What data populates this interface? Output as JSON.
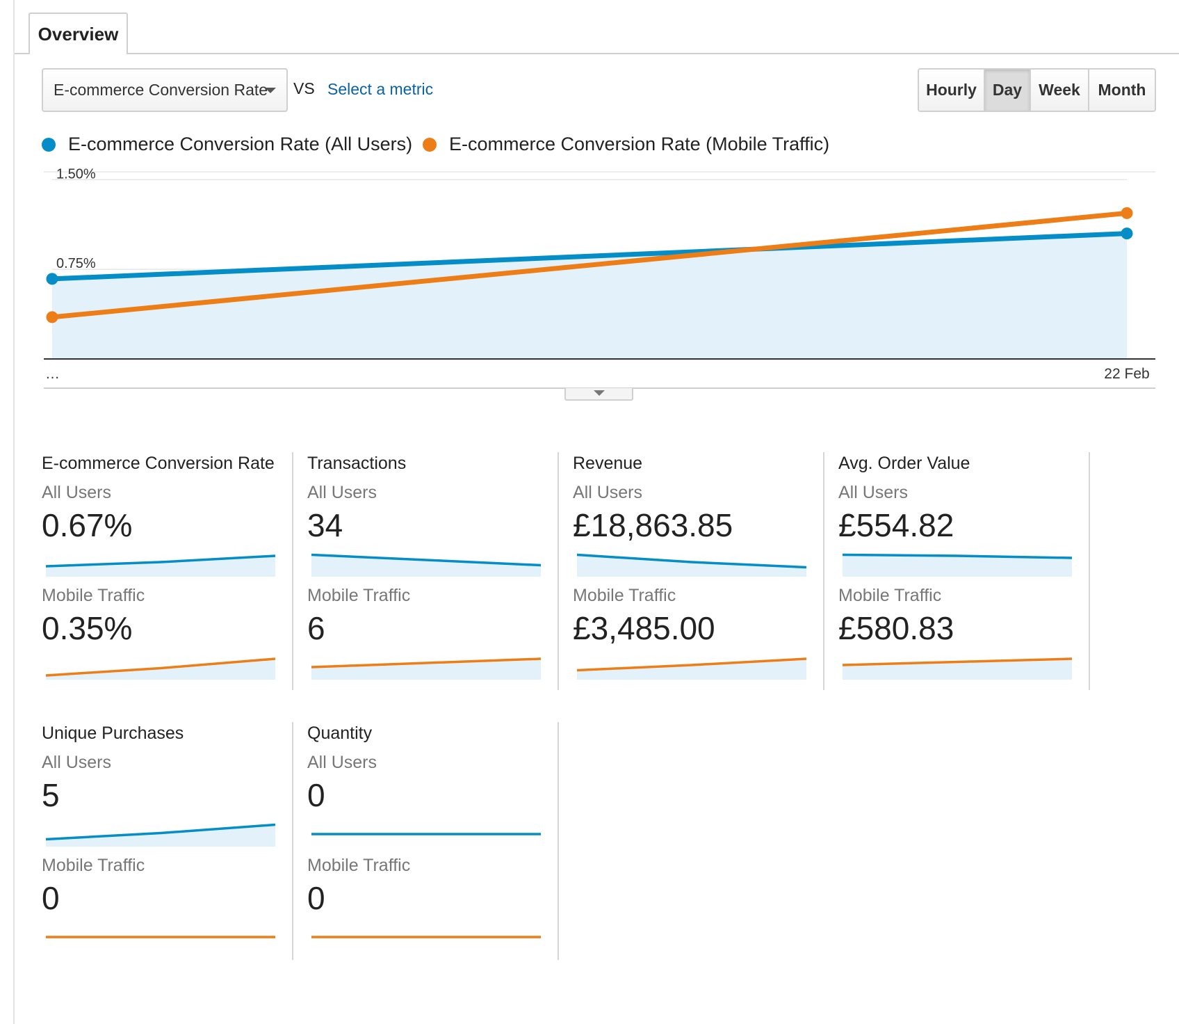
{
  "tabs": [
    {
      "label": "Overview",
      "active": true
    }
  ],
  "toolbar": {
    "metric_selected": "E-commerce Conversion Rate",
    "vs_label": "VS",
    "compare_link": "Select a metric",
    "periods": [
      {
        "label": "Hourly",
        "active": false
      },
      {
        "label": "Day",
        "active": true
      },
      {
        "label": "Week",
        "active": false
      },
      {
        "label": "Month",
        "active": false
      }
    ]
  },
  "legend": [
    {
      "label": "E-commerce Conversion Rate (All Users)",
      "color": "#058dc7"
    },
    {
      "label": "E-commerce Conversion Rate (Mobile Traffic)",
      "color": "#ed7e17"
    }
  ],
  "chart_data": {
    "type": "line",
    "x": [
      "…",
      "22 Feb"
    ],
    "series": [
      {
        "name": "E-commerce Conversion Rate (All Users)",
        "values": [
          0.67,
          1.05
        ],
        "color": "#058dc7",
        "area": true
      },
      {
        "name": "E-commerce Conversion Rate (Mobile Traffic)",
        "values": [
          0.35,
          1.22
        ],
        "color": "#ed7e17",
        "area": false
      }
    ],
    "y_ticks": [
      "1.50%",
      "0.75%"
    ],
    "y_tick_values": [
      1.5,
      0.75
    ],
    "ylim": [
      0,
      1.56
    ],
    "grid": true,
    "title": "",
    "xlabel": "",
    "ylabel": ""
  },
  "scorecards": [
    {
      "title": "E-commerce Conversion Rate",
      "all_users": {
        "label": "All Users",
        "value": "0.67%",
        "trend": [
          0.4,
          0.6,
          0.9
        ]
      },
      "mobile": {
        "label": "Mobile Traffic",
        "value": "0.35%",
        "trend": [
          0.1,
          0.45,
          0.9
        ]
      }
    },
    {
      "title": "Transactions",
      "all_users": {
        "label": "All Users",
        "value": "34",
        "trend": [
          0.95,
          0.7,
          0.45
        ]
      },
      "mobile": {
        "label": "Mobile Traffic",
        "value": "6",
        "trend": [
          0.5,
          0.7,
          0.9
        ]
      }
    },
    {
      "title": "Revenue",
      "all_users": {
        "label": "All Users",
        "value": "£18,863.85",
        "trend": [
          0.95,
          0.6,
          0.35
        ]
      },
      "mobile": {
        "label": "Mobile Traffic",
        "value": "£3,485.00",
        "trend": [
          0.35,
          0.6,
          0.9
        ]
      }
    },
    {
      "title": "Avg. Order Value",
      "all_users": {
        "label": "All Users",
        "value": "£554.82",
        "trend": [
          0.95,
          0.9,
          0.8
        ]
      },
      "mobile": {
        "label": "Mobile Traffic",
        "value": "£580.83",
        "trend": [
          0.6,
          0.75,
          0.9
        ]
      }
    },
    {
      "title": "Unique Purchases",
      "all_users": {
        "label": "All Users",
        "value": "5",
        "trend": [
          0.25,
          0.55,
          0.95
        ]
      },
      "mobile": {
        "label": "Mobile Traffic",
        "value": "0",
        "trend": [
          0,
          0,
          0
        ]
      }
    },
    {
      "title": "Quantity",
      "all_users": {
        "label": "All Users",
        "value": "0",
        "trend": [
          0,
          0,
          0
        ]
      },
      "mobile": {
        "label": "Mobile Traffic",
        "value": "0",
        "trend": [
          0,
          0,
          0
        ]
      }
    }
  ]
}
